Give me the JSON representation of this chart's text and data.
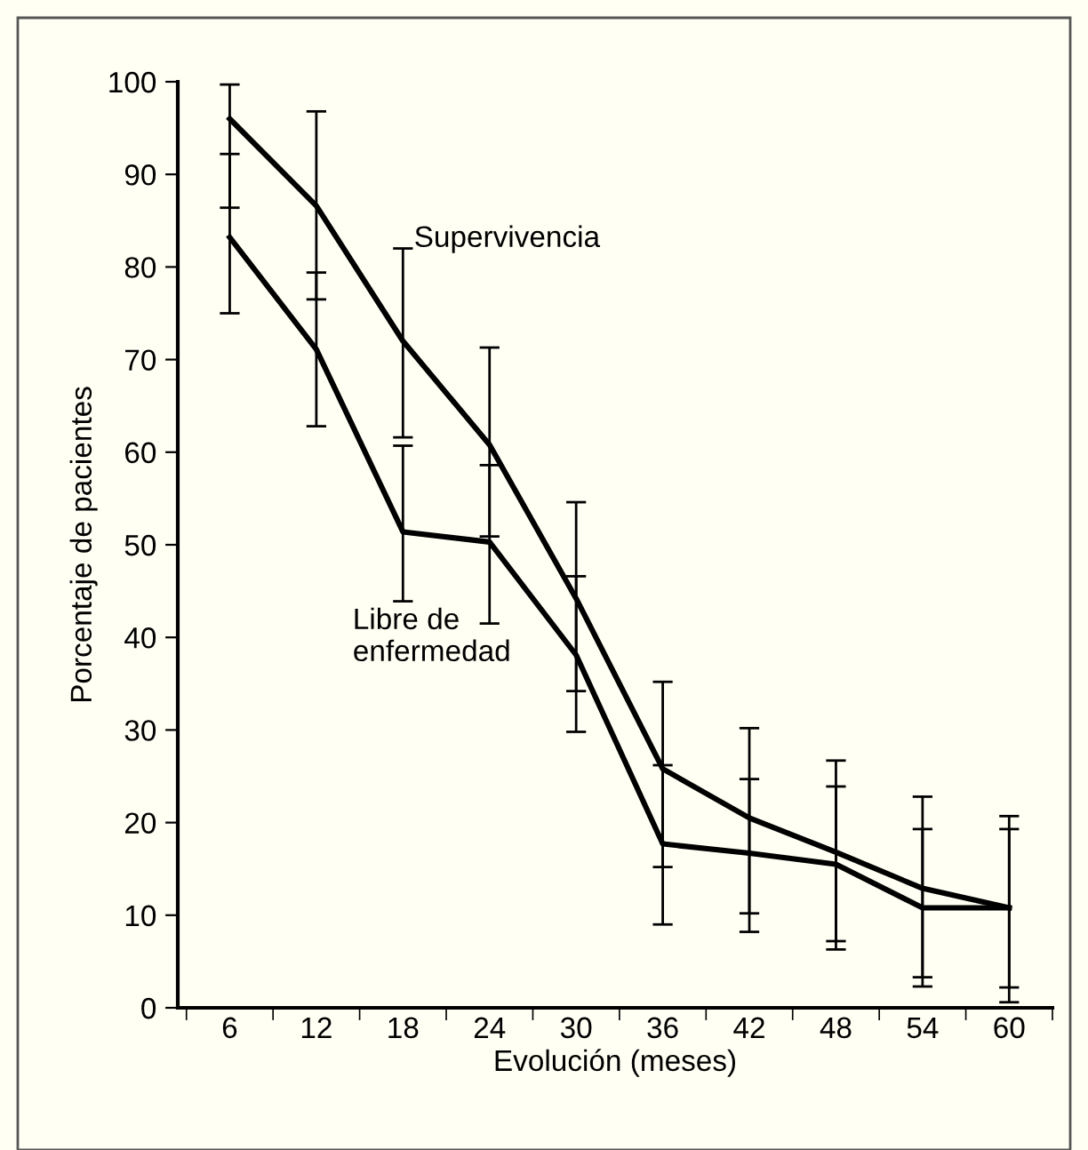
{
  "chart_data": {
    "type": "line",
    "xlabel": "Evolución (meses)",
    "ylabel": "Porcentaje de pacientes",
    "categories": [
      "6",
      "12",
      "18",
      "24",
      "30",
      "36",
      "42",
      "48",
      "54",
      "60"
    ],
    "series": [
      {
        "name": "Supervivencia",
        "color": "#000000",
        "values": [
          96.0,
          86.6,
          72.0,
          60.8,
          44.2,
          25.8,
          20.5,
          16.8,
          12.9,
          10.8
        ],
        "errors": [
          [
            86.4,
            99.7
          ],
          [
            76.5,
            96.8
          ],
          [
            61.6,
            82.0
          ],
          [
            50.9,
            71.3
          ],
          [
            34.2,
            54.6
          ],
          [
            15.2,
            35.2
          ],
          [
            10.2,
            30.2
          ],
          [
            7.2,
            26.7
          ],
          [
            3.3,
            22.8
          ],
          [
            0.6,
            20.7
          ]
        ]
      },
      {
        "name": "Libre de\nenfermedad",
        "color": "#000000",
        "values": [
          83.2,
          71.1,
          51.4,
          50.3,
          38.1,
          17.7,
          16.7,
          15.5,
          10.8,
          10.8
        ],
        "errors": [
          [
            75.0,
            92.2
          ],
          [
            62.8,
            79.4
          ],
          [
            43.9,
            60.7
          ],
          [
            41.5,
            58.6
          ],
          [
            29.8,
            46.6
          ],
          [
            9.0,
            26.2
          ],
          [
            8.2,
            24.7
          ],
          [
            6.3,
            23.9
          ],
          [
            2.3,
            19.3
          ],
          [
            2.2,
            19.3
          ]
        ]
      }
    ],
    "ylim": [
      0,
      100
    ],
    "yticks": [
      0,
      10,
      20,
      30,
      40,
      50,
      60,
      70,
      80,
      90,
      100
    ],
    "grid": false,
    "legend": false,
    "marker": "none",
    "line_style": "solid"
  }
}
